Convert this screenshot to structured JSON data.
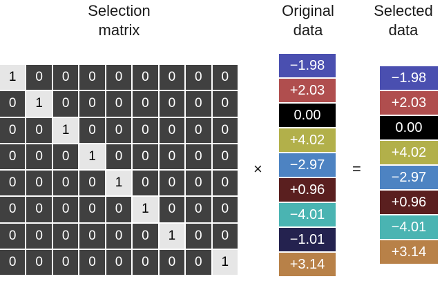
{
  "headings": {
    "selection": [
      "Selection",
      "matrix"
    ],
    "original": [
      "Original",
      "data"
    ],
    "selected": [
      "Selected",
      "data"
    ]
  },
  "operators": {
    "times": "×",
    "equals": "="
  },
  "matrix": [
    [
      1,
      0,
      0,
      0,
      0,
      0,
      0,
      0,
      0
    ],
    [
      0,
      1,
      0,
      0,
      0,
      0,
      0,
      0,
      0
    ],
    [
      0,
      0,
      1,
      0,
      0,
      0,
      0,
      0,
      0
    ],
    [
      0,
      0,
      0,
      1,
      0,
      0,
      0,
      0,
      0
    ],
    [
      0,
      0,
      0,
      0,
      1,
      0,
      0,
      0,
      0
    ],
    [
      0,
      0,
      0,
      0,
      0,
      1,
      0,
      0,
      0
    ],
    [
      0,
      0,
      0,
      0,
      0,
      0,
      1,
      0,
      0
    ],
    [
      0,
      0,
      0,
      0,
      0,
      0,
      0,
      0,
      1
    ]
  ],
  "original_data": [
    {
      "value": "−1.98",
      "color": "#4a4fb0"
    },
    {
      "value": "+2.03",
      "color": "#b04e4e"
    },
    {
      "value": "0.00",
      "color": "#000000"
    },
    {
      "value": "+4.02",
      "color": "#b2b04a"
    },
    {
      "value": "−2.97",
      "color": "#4d83c2"
    },
    {
      "value": "+0.96",
      "color": "#5a1f1f"
    },
    {
      "value": "−4.01",
      "color": "#4ab4b2"
    },
    {
      "value": "−1.01",
      "color": "#24224f"
    },
    {
      "value": "+3.14",
      "color": "#b88148"
    }
  ],
  "selected_data": [
    {
      "value": "−1.98",
      "color": "#4a4fb0"
    },
    {
      "value": "+2.03",
      "color": "#b04e4e"
    },
    {
      "value": "0.00",
      "color": "#000000"
    },
    {
      "value": "+4.02",
      "color": "#b2b04a"
    },
    {
      "value": "−2.97",
      "color": "#4d83c2"
    },
    {
      "value": "+0.96",
      "color": "#5a1f1f"
    },
    {
      "value": "−4.01",
      "color": "#4ab4b2"
    },
    {
      "value": "+3.14",
      "color": "#b88148"
    }
  ]
}
